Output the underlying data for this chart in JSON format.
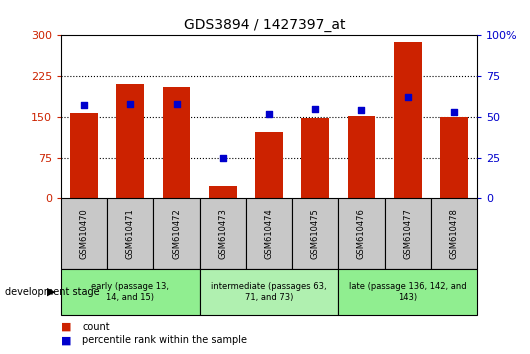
{
  "title": "GDS3894 / 1427397_at",
  "samples": [
    "GSM610470",
    "GSM610471",
    "GSM610472",
    "GSM610473",
    "GSM610474",
    "GSM610475",
    "GSM610476",
    "GSM610477",
    "GSM610478"
  ],
  "counts": [
    157,
    210,
    205,
    22,
    122,
    147,
    152,
    287,
    150
  ],
  "percentile_ranks": [
    57,
    58,
    58,
    25,
    52,
    55,
    54,
    62,
    53
  ],
  "ylim_left": [
    0,
    300
  ],
  "ylim_right": [
    0,
    100
  ],
  "yticks_left": [
    0,
    75,
    150,
    225,
    300
  ],
  "yticks_right": [
    0,
    25,
    50,
    75,
    100
  ],
  "groups": [
    {
      "label": "early (passage 13,\n14, and 15)",
      "indices": [
        0,
        1,
        2
      ],
      "color": "#90ee90"
    },
    {
      "label": "intermediate (passages 63,\n71, and 73)",
      "indices": [
        3,
        4,
        5
      ],
      "color": "#b0f0b0"
    },
    {
      "label": "late (passage 136, 142, and\n143)",
      "indices": [
        6,
        7,
        8
      ],
      "color": "#90ee90"
    }
  ],
  "bar_color": "#cc2200",
  "dot_color": "#0000cc",
  "bg_labels": "#c8c8c8",
  "left_tick_color": "#cc2200",
  "right_tick_color": "#0000cc",
  "legend_count_label": "count",
  "legend_pct_label": "percentile rank within the sample",
  "dev_stage_label": "development stage"
}
